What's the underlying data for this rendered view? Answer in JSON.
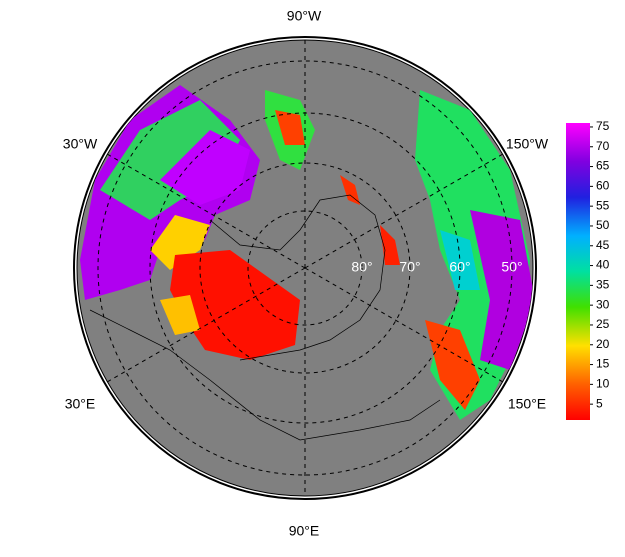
{
  "map": {
    "longitude_labels": {
      "top": "90°W",
      "upper_left": "30°W",
      "upper_right": "150°W",
      "lower_left": "30°E",
      "lower_right": "150°E",
      "bottom": "90°E"
    },
    "latitude_labels": [
      "80°",
      "70°",
      "60°",
      "50°"
    ],
    "colorbar": {
      "ylim": [
        1,
        76
      ],
      "yticks": [
        5,
        10,
        15,
        20,
        25,
        30,
        35,
        40,
        45,
        50,
        55,
        60,
        65,
        70,
        75
      ]
    }
  }
}
